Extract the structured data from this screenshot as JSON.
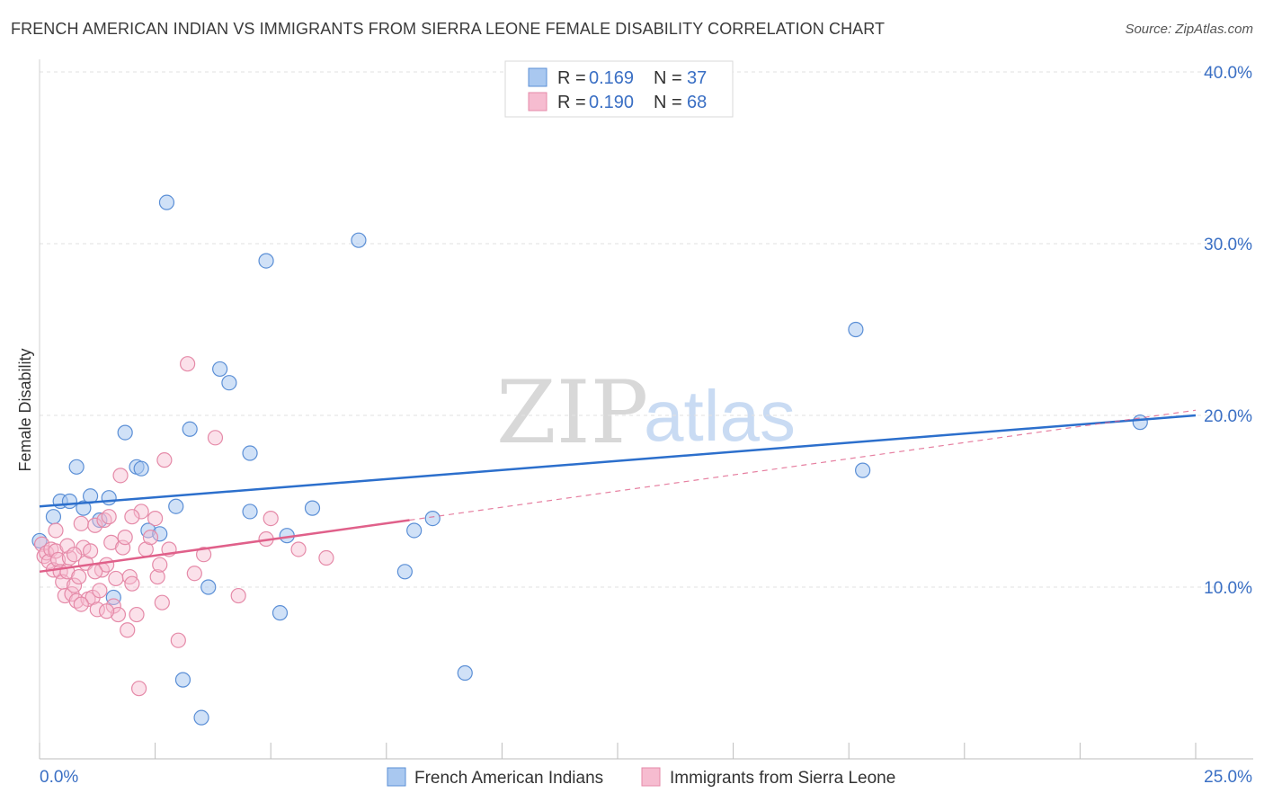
{
  "chart_data": {
    "type": "scatter",
    "title": "FRENCH AMERICAN INDIAN VS IMMIGRANTS FROM SIERRA LEONE FEMALE DISABILITY CORRELATION CHART",
    "source": "Source: ZipAtlas.com",
    "ylabel": "Female Disability",
    "xlabel": "",
    "xlim": [
      0,
      25
    ],
    "ylim": [
      0,
      40
    ],
    "x_tick_labels": [
      "0.0%",
      "25.0%"
    ],
    "y_tick_values": [
      10,
      20,
      30,
      40
    ],
    "y_tick_labels": [
      "10.0%",
      "20.0%",
      "30.0%",
      "40.0%"
    ],
    "watermark": {
      "zip": "ZIP",
      "atlas": "atlas"
    },
    "legend": {
      "r_label": "R =",
      "n_label": "N =",
      "entries": [
        {
          "r": "0.169",
          "n": "37"
        },
        {
          "r": "0.190",
          "n": "68"
        }
      ]
    },
    "colors": {
      "blue_fill": "#a9c8f0",
      "blue_stroke": "#5b8fd6",
      "blue_line": "#2c6fcc",
      "pink_fill": "#f6bcd0",
      "pink_stroke": "#e58aa8",
      "pink_line": "#e0608a"
    },
    "series": [
      {
        "name": "French American Indians",
        "trend": {
          "x": [
            0,
            25
          ],
          "y": [
            14.7,
            20.0
          ]
        },
        "points": [
          [
            0.0,
            12.7
          ],
          [
            0.3,
            14.1
          ],
          [
            0.45,
            15.0
          ],
          [
            0.65,
            15.0
          ],
          [
            0.8,
            17.0
          ],
          [
            0.95,
            14.6
          ],
          [
            1.1,
            15.3
          ],
          [
            1.3,
            13.9
          ],
          [
            1.5,
            15.2
          ],
          [
            1.6,
            9.4
          ],
          [
            1.85,
            19.0
          ],
          [
            2.1,
            17.0
          ],
          [
            2.2,
            16.9
          ],
          [
            2.35,
            13.3
          ],
          [
            2.6,
            13.1
          ],
          [
            2.75,
            32.4
          ],
          [
            2.95,
            14.7
          ],
          [
            3.1,
            4.6
          ],
          [
            3.25,
            19.2
          ],
          [
            3.5,
            2.4
          ],
          [
            3.65,
            10.0
          ],
          [
            3.9,
            22.7
          ],
          [
            4.1,
            21.9
          ],
          [
            4.55,
            14.4
          ],
          [
            4.55,
            17.8
          ],
          [
            4.9,
            29.0
          ],
          [
            5.2,
            8.5
          ],
          [
            5.35,
            13.0
          ],
          [
            5.9,
            14.6
          ],
          [
            6.9,
            30.2
          ],
          [
            7.9,
            10.9
          ],
          [
            8.1,
            13.3
          ],
          [
            8.5,
            14.0
          ],
          [
            9.2,
            5.0
          ],
          [
            17.65,
            25.0
          ],
          [
            17.8,
            16.8
          ],
          [
            23.8,
            19.6
          ]
        ]
      },
      {
        "name": "Immigrants from Sierra Leone",
        "trend_solid": {
          "x": [
            0,
            8.0
          ],
          "y": [
            10.9,
            13.9
          ]
        },
        "trend_dashed": {
          "x": [
            8.0,
            25
          ],
          "y": [
            13.9,
            20.3
          ]
        },
        "points": [
          [
            0.05,
            12.5
          ],
          [
            0.1,
            11.8
          ],
          [
            0.15,
            12.0
          ],
          [
            0.2,
            11.5
          ],
          [
            0.25,
            12.2
          ],
          [
            0.3,
            11.0
          ],
          [
            0.35,
            12.1
          ],
          [
            0.4,
            11.6
          ],
          [
            0.45,
            10.9
          ],
          [
            0.5,
            10.3
          ],
          [
            0.55,
            9.5
          ],
          [
            0.6,
            10.9
          ],
          [
            0.65,
            11.7
          ],
          [
            0.7,
            9.6
          ],
          [
            0.75,
            10.1
          ],
          [
            0.8,
            9.2
          ],
          [
            0.85,
            10.6
          ],
          [
            0.9,
            13.7
          ],
          [
            0.95,
            12.3
          ],
          [
            1.0,
            11.4
          ],
          [
            1.05,
            9.3
          ],
          [
            1.1,
            12.1
          ],
          [
            1.15,
            9.4
          ],
          [
            1.2,
            13.6
          ],
          [
            1.25,
            8.7
          ],
          [
            1.3,
            9.8
          ],
          [
            1.35,
            11.0
          ],
          [
            1.4,
            13.9
          ],
          [
            1.45,
            11.3
          ],
          [
            1.5,
            14.1
          ],
          [
            1.55,
            12.6
          ],
          [
            1.6,
            8.9
          ],
          [
            1.65,
            10.5
          ],
          [
            1.7,
            8.4
          ],
          [
            1.75,
            16.5
          ],
          [
            1.8,
            12.3
          ],
          [
            1.85,
            12.9
          ],
          [
            1.9,
            7.5
          ],
          [
            1.95,
            10.6
          ],
          [
            2.0,
            10.2
          ],
          [
            2.1,
            8.4
          ],
          [
            2.15,
            4.1
          ],
          [
            2.2,
            14.4
          ],
          [
            2.3,
            12.2
          ],
          [
            2.4,
            12.9
          ],
          [
            2.5,
            14.0
          ],
          [
            2.55,
            10.6
          ],
          [
            2.65,
            9.1
          ],
          [
            2.7,
            17.4
          ],
          [
            2.8,
            12.2
          ],
          [
            3.0,
            6.9
          ],
          [
            3.2,
            23.0
          ],
          [
            3.35,
            10.8
          ],
          [
            3.55,
            11.9
          ],
          [
            3.8,
            18.7
          ],
          [
            4.3,
            9.5
          ],
          [
            4.9,
            12.8
          ],
          [
            5.0,
            14.0
          ],
          [
            5.6,
            12.2
          ],
          [
            6.2,
            11.7
          ],
          [
            0.35,
            13.3
          ],
          [
            0.6,
            12.4
          ],
          [
            0.9,
            9.0
          ],
          [
            1.2,
            10.9
          ],
          [
            2.0,
            14.1
          ],
          [
            2.6,
            11.3
          ],
          [
            1.45,
            8.6
          ],
          [
            0.75,
            11.9
          ]
        ]
      }
    ]
  }
}
